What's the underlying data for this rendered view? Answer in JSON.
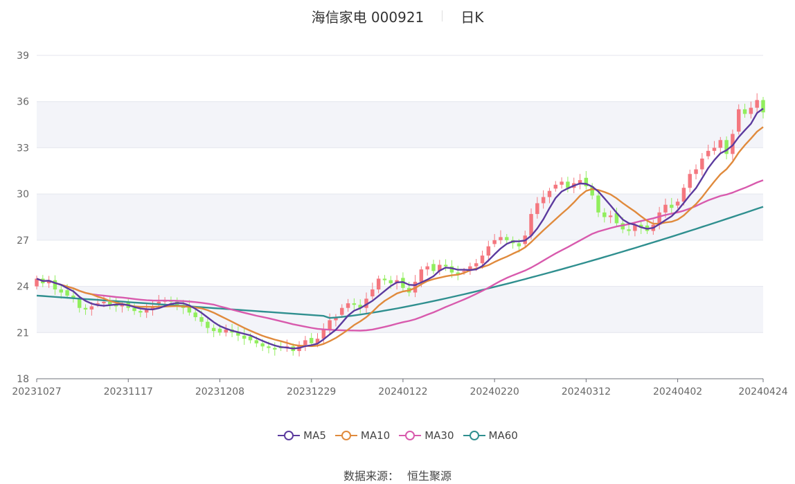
{
  "title": {
    "stock": "海信家电 000921",
    "period": "日K"
  },
  "source": {
    "label": "数据来源：",
    "value": "恒生聚源"
  },
  "colors": {
    "up": "#f4777f",
    "down": "#91ee5d",
    "MA5": "#5b3a9e",
    "MA10": "#e08a3c",
    "MA30": "#d85aad",
    "MA60": "#2f8f8f",
    "band": "#f3f4f9",
    "grid": "#e4e6ee"
  },
  "chart_data": {
    "type": "candlestick",
    "yaxis": {
      "min": 18,
      "max": 39,
      "ticks": [
        "18",
        "21",
        "24",
        "27",
        "30",
        "33",
        "36",
        "39"
      ]
    },
    "xaxis": {
      "count": 120,
      "ticks": [
        {
          "i": 0,
          "label": "20231027"
        },
        {
          "i": 15,
          "label": "20231117"
        },
        {
          "i": 30,
          "label": "20231208"
        },
        {
          "i": 45,
          "label": "20231229"
        },
        {
          "i": 60,
          "label": "20240122"
        },
        {
          "i": 75,
          "label": "20240220"
        },
        {
          "i": 90,
          "label": "20240312"
        },
        {
          "i": 105,
          "label": "20240402"
        },
        {
          "i": 119,
          "label": "20240424"
        }
      ]
    },
    "legend": [
      "MA5",
      "MA10",
      "MA30",
      "MA60"
    ],
    "close": [
      24.5,
      24.2,
      24.4,
      23.8,
      23.6,
      23.4,
      23.2,
      22.6,
      22.5,
      22.7,
      22.9,
      23.0,
      22.8,
      22.7,
      22.8,
      22.6,
      22.4,
      22.3,
      22.5,
      22.7,
      23.0,
      23.1,
      23.0,
      22.8,
      22.6,
      22.3,
      22.0,
      21.7,
      21.3,
      21.1,
      21.0,
      21.2,
      21.0,
      20.8,
      20.6,
      20.5,
      20.3,
      20.1,
      20.0,
      19.9,
      20.0,
      20.1,
      19.8,
      20.2,
      20.5,
      20.3,
      20.6,
      21.2,
      21.8,
      22.0,
      22.6,
      22.9,
      22.8,
      22.6,
      23.2,
      23.8,
      24.5,
      24.4,
      24.2,
      24.4,
      23.9,
      23.6,
      24.3,
      25.1,
      25.3,
      25.0,
      25.4,
      25.3,
      24.9,
      24.8,
      25.0,
      25.3,
      25.5,
      26.0,
      26.6,
      27.0,
      27.2,
      27.0,
      26.8,
      26.6,
      27.3,
      28.7,
      29.4,
      29.8,
      30.2,
      30.6,
      30.8,
      30.4,
      30.7,
      30.9,
      30.5,
      29.9,
      28.8,
      28.5,
      28.6,
      28.1,
      27.7,
      27.6,
      28.0,
      27.8,
      27.6,
      28.0,
      28.8,
      29.3,
      29.1,
      29.5,
      30.4,
      31.3,
      31.6,
      32.3,
      32.8,
      33.0,
      33.5,
      32.6,
      33.9,
      35.5,
      35.2,
      35.6,
      36.1,
      35.3
    ]
  }
}
